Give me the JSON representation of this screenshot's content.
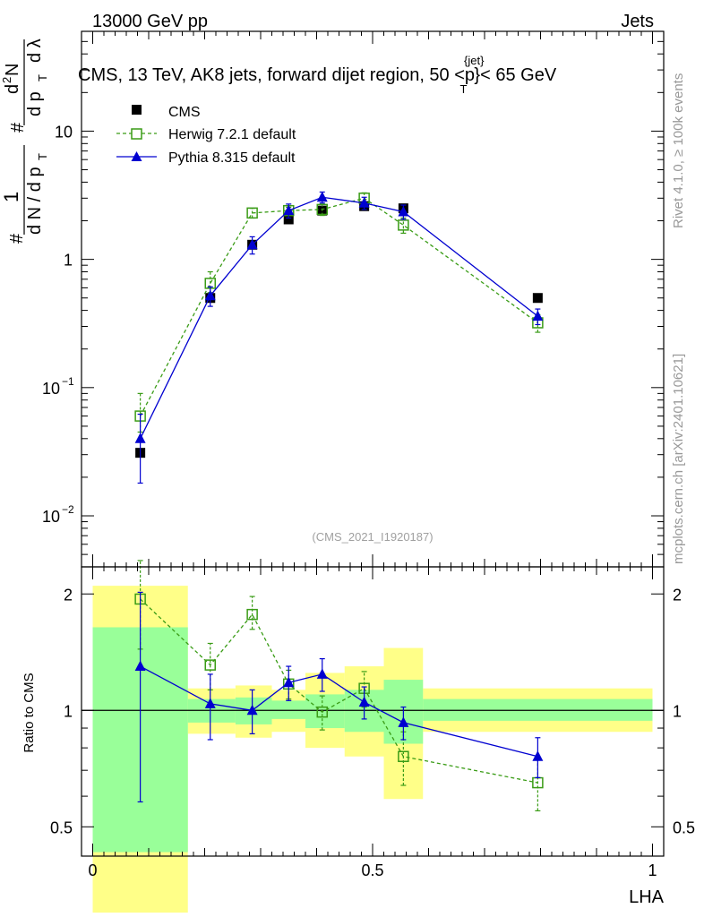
{
  "header": {
    "left": "13000 GeV pp",
    "right": "Jets"
  },
  "side_labels": {
    "rivet": "Rivet 4.1.0, ≥ 100k events",
    "mcplots": "mcplots.cern.ch [arXiv:2401.10621]"
  },
  "chart_data": [
    {
      "type": "line",
      "title": "CMS, 13 TeV, AK8 jets, forward dijet region, 50 <p",
      "title_sup": "{jet}",
      "title_sub": "T",
      "title_end": "}< 65 GeV",
      "watermark": "(CMS_2021_I1920187)",
      "yscale": "log",
      "xlim": [
        -0.02,
        1.02
      ],
      "ylim": [
        0.004,
        60
      ],
      "ylabel_parts": [
        "#",
        "1",
        "d N / d p",
        "T",
        "#",
        "d",
        "2",
        "N",
        "d p",
        "T",
        "d λ"
      ],
      "yticks": [
        {
          "value": 0.01,
          "label": "10",
          "exp": "−2"
        },
        {
          "value": 0.1,
          "label": "10",
          "exp": "−1"
        },
        {
          "value": 1,
          "label": "1",
          "exp": ""
        },
        {
          "value": 10,
          "label": "10",
          "exp": ""
        }
      ],
      "legend_position": "top-left",
      "series": [
        {
          "name": "CMS",
          "marker": "square-filled",
          "color": "#000000",
          "x": [
            0.085,
            0.21,
            0.285,
            0.35,
            0.41,
            0.485,
            0.555,
            0.795
          ],
          "y": [
            0.031,
            0.5,
            1.3,
            2.05,
            2.4,
            2.6,
            2.5,
            0.5
          ],
          "err_lo": [
            0,
            0,
            0,
            0,
            0,
            0,
            0,
            0
          ],
          "err_hi": [
            0,
            0,
            0,
            0,
            0,
            0,
            0,
            0
          ]
        },
        {
          "name": "Herwig 7.2.1 default",
          "marker": "square-open",
          "color": "#3a9c16",
          "dashed": true,
          "x": [
            0.085,
            0.21,
            0.285,
            0.35,
            0.41,
            0.485,
            0.555,
            0.795
          ],
          "y": [
            0.06,
            0.65,
            2.3,
            2.4,
            2.45,
            3.0,
            1.85,
            0.32
          ],
          "err_lo": [
            0.015,
            0.1,
            0.2,
            0.15,
            0.25,
            0.3,
            0.25,
            0.05
          ],
          "err_hi": [
            0.03,
            0.15,
            0.2,
            0.15,
            0.25,
            0.3,
            0.25,
            0.05
          ]
        },
        {
          "name": "Pythia 8.315 default",
          "marker": "triangle-filled",
          "color": "#0000d0",
          "dashed": false,
          "x": [
            0.085,
            0.21,
            0.285,
            0.35,
            0.41,
            0.485,
            0.555,
            0.795
          ],
          "y": [
            0.04,
            0.52,
            1.3,
            2.4,
            3.05,
            2.75,
            2.35,
            0.36
          ],
          "err_lo": [
            0.022,
            0.09,
            0.2,
            0.3,
            0.3,
            0.3,
            0.3,
            0.05
          ],
          "err_hi": [
            0.022,
            0.09,
            0.2,
            0.3,
            0.3,
            0.3,
            0.3,
            0.05
          ]
        }
      ]
    },
    {
      "type": "line",
      "ylabel": "Ratio to CMS",
      "xlabel": "LHA",
      "yscale": "log",
      "xlim": [
        -0.02,
        1.02
      ],
      "ylim": [
        0.42,
        2.35
      ],
      "xticks": [
        {
          "value": 0,
          "label": "0"
        },
        {
          "value": 0.5,
          "label": "0.5"
        },
        {
          "value": 1,
          "label": "1"
        }
      ],
      "yticks": [
        {
          "value": 0.5,
          "label": "0.5"
        },
        {
          "value": 1,
          "label": "1"
        },
        {
          "value": 2,
          "label": "2"
        }
      ],
      "bands": {
        "green_color": "#99ff99",
        "yellow_color": "#ffff88",
        "bins": [
          {
            "x0": 0.0,
            "x1": 0.17,
            "g_lo": 0.43,
            "g_hi": 1.64,
            "y_lo": 0.3,
            "y_hi": 2.1
          },
          {
            "x0": 0.17,
            "x1": 0.255,
            "g_lo": 0.93,
            "g_hi": 1.07,
            "y_lo": 0.87,
            "y_hi": 1.14
          },
          {
            "x0": 0.255,
            "x1": 0.32,
            "g_lo": 0.92,
            "g_hi": 1.08,
            "y_lo": 0.85,
            "y_hi": 1.16
          },
          {
            "x0": 0.32,
            "x1": 0.38,
            "g_lo": 0.95,
            "g_hi": 1.06,
            "y_lo": 0.88,
            "y_hi": 1.13
          },
          {
            "x0": 0.38,
            "x1": 0.45,
            "g_lo": 0.9,
            "g_hi": 1.1,
            "y_lo": 0.8,
            "y_hi": 1.25
          },
          {
            "x0": 0.45,
            "x1": 0.52,
            "g_lo": 0.88,
            "g_hi": 1.13,
            "y_lo": 0.76,
            "y_hi": 1.3
          },
          {
            "x0": 0.52,
            "x1": 0.59,
            "g_lo": 0.82,
            "g_hi": 1.2,
            "y_lo": 0.59,
            "y_hi": 1.45
          },
          {
            "x0": 0.59,
            "x1": 1.0,
            "g_lo": 0.94,
            "g_hi": 1.07,
            "y_lo": 0.88,
            "y_hi": 1.14
          }
        ]
      },
      "series": [
        {
          "name": "Herwig 7.2.1 default",
          "marker": "square-open",
          "color": "#3a9c16",
          "dashed": true,
          "x": [
            0.085,
            0.21,
            0.285,
            0.35,
            0.41,
            0.485,
            0.555,
            0.795
          ],
          "y": [
            1.94,
            1.31,
            1.77,
            1.17,
            0.99,
            1.14,
            0.76,
            0.65
          ],
          "err_lo": [
            0.5,
            0.18,
            0.15,
            0.1,
            0.1,
            0.12,
            0.12,
            0.1
          ],
          "err_hi": [
            0.5,
            0.18,
            0.2,
            0.1,
            0.1,
            0.12,
            0.12,
            0.1
          ]
        },
        {
          "name": "Pythia 8.315 default",
          "marker": "triangle-filled",
          "color": "#0000d0",
          "dashed": false,
          "x": [
            0.085,
            0.21,
            0.285,
            0.35,
            0.41,
            0.485,
            0.555,
            0.795
          ],
          "y": [
            1.3,
            1.04,
            1.0,
            1.18,
            1.24,
            1.05,
            0.93,
            0.76
          ],
          "err_lo": [
            0.72,
            0.2,
            0.13,
            0.12,
            0.12,
            0.1,
            0.09,
            0.09
          ],
          "err_hi": [
            0.72,
            0.2,
            0.13,
            0.12,
            0.12,
            0.1,
            0.09,
            0.09
          ]
        }
      ]
    }
  ]
}
